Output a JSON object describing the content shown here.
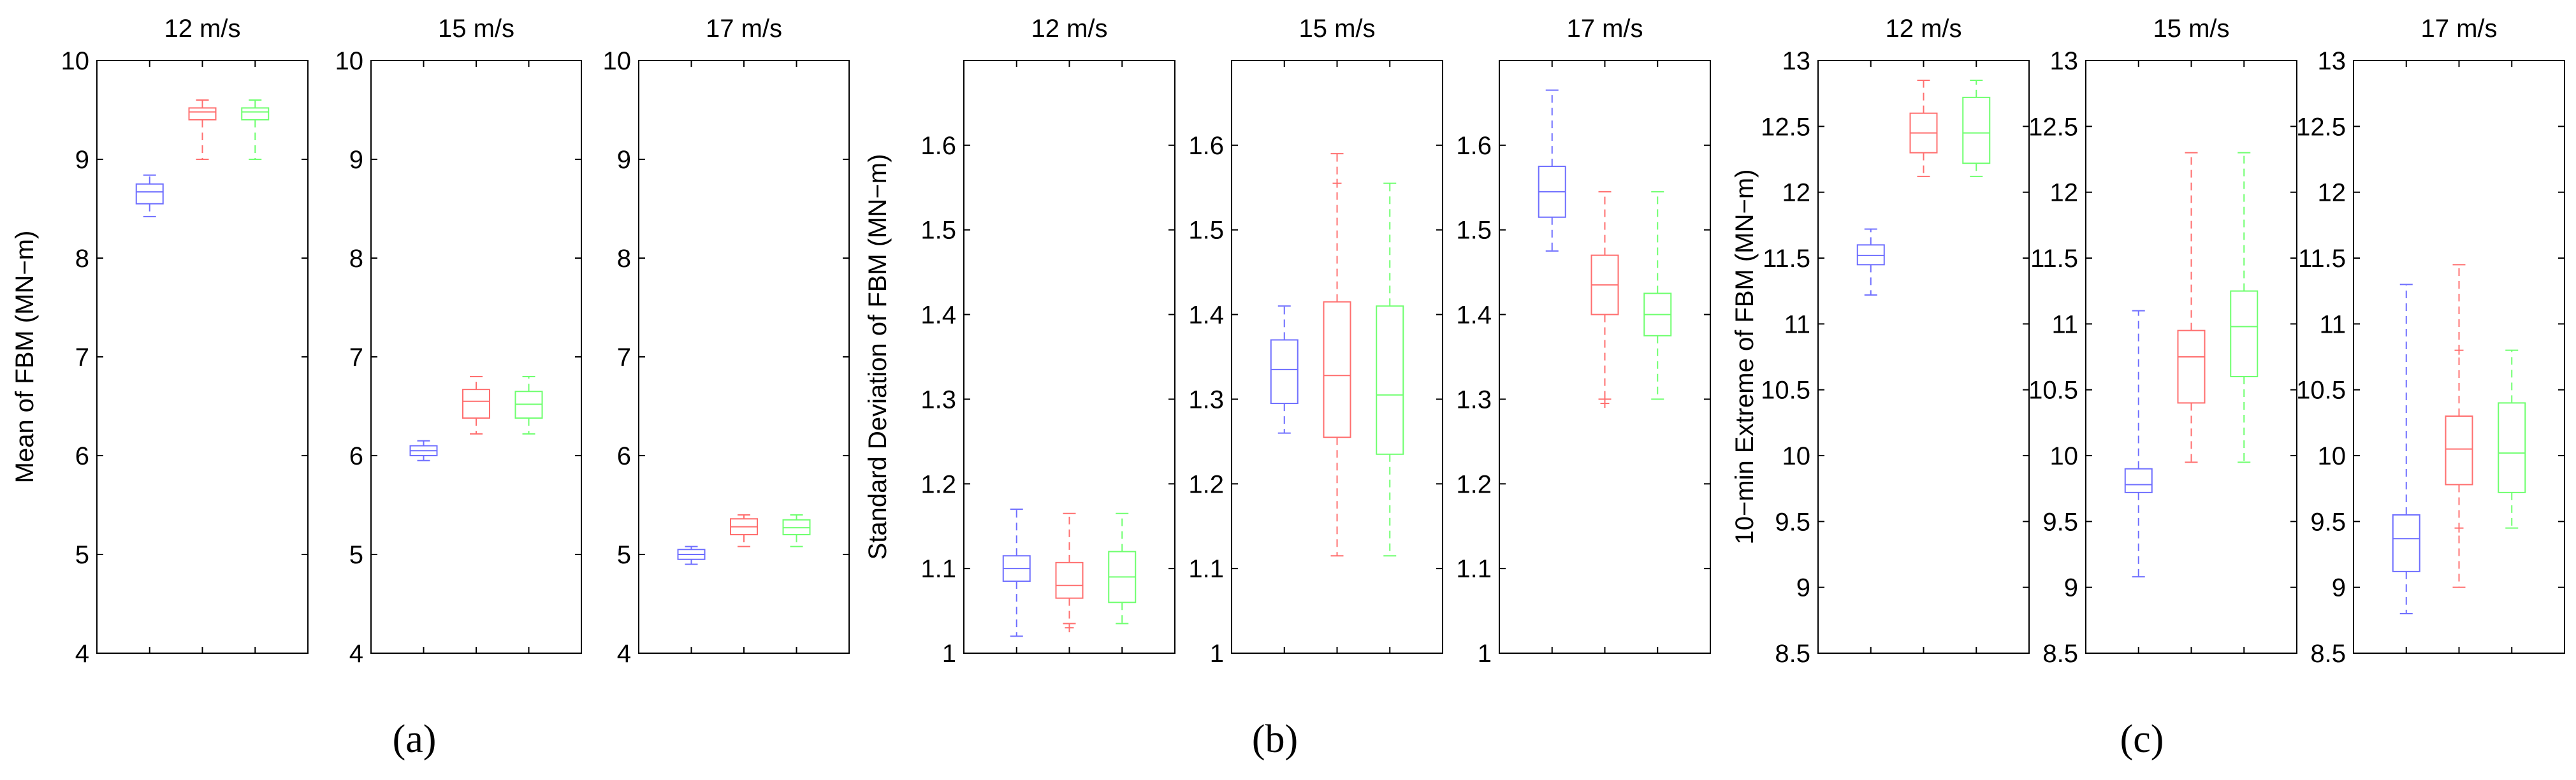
{
  "chart_data": [
    {
      "type": "box",
      "group": "a",
      "title": "12 m/s",
      "ylabel": "Mean of FBM (MN−m)",
      "ylim": [
        4,
        10
      ],
      "yticks": [
        4,
        5,
        6,
        7,
        8,
        9,
        10
      ],
      "ytick_labels": [
        "4",
        "5",
        "6",
        "7",
        "8",
        "9",
        "10"
      ],
      "colors": [
        "#6f6fff",
        "#ff6f6f",
        "#6fff6f"
      ],
      "series": [
        {
          "min": 8.42,
          "q1": 8.55,
          "median": 8.67,
          "q3": 8.75,
          "max": 8.84,
          "outliers": []
        },
        {
          "min": 9.0,
          "q1": 9.4,
          "median": 9.48,
          "q3": 9.52,
          "max": 9.6,
          "outliers": []
        },
        {
          "min": 9.0,
          "q1": 9.4,
          "median": 9.48,
          "q3": 9.52,
          "max": 9.6,
          "outliers": []
        }
      ]
    },
    {
      "type": "box",
      "group": "a",
      "title": "15 m/s",
      "ylabel": "",
      "ylim": [
        4,
        10
      ],
      "yticks": [
        4,
        5,
        6,
        7,
        8,
        9,
        10
      ],
      "ytick_labels": [
        "4",
        "5",
        "6",
        "7",
        "8",
        "9",
        "10"
      ],
      "colors": [
        "#6f6fff",
        "#ff6f6f",
        "#6fff6f"
      ],
      "series": [
        {
          "min": 5.95,
          "q1": 6.0,
          "median": 6.05,
          "q3": 6.1,
          "max": 6.15,
          "outliers": []
        },
        {
          "min": 6.22,
          "q1": 6.38,
          "median": 6.55,
          "q3": 6.67,
          "max": 6.8,
          "outliers": []
        },
        {
          "min": 6.22,
          "q1": 6.38,
          "median": 6.52,
          "q3": 6.65,
          "max": 6.8,
          "outliers": []
        }
      ]
    },
    {
      "type": "box",
      "group": "a",
      "title": "17 m/s",
      "ylabel": "",
      "ylim": [
        4,
        10
      ],
      "yticks": [
        4,
        5,
        6,
        7,
        8,
        9,
        10
      ],
      "ytick_labels": [
        "4",
        "5",
        "6",
        "7",
        "8",
        "9",
        "10"
      ],
      "colors": [
        "#6f6fff",
        "#ff6f6f",
        "#6fff6f"
      ],
      "series": [
        {
          "min": 4.9,
          "q1": 4.95,
          "median": 5.0,
          "q3": 5.05,
          "max": 5.08,
          "outliers": []
        },
        {
          "min": 5.08,
          "q1": 5.2,
          "median": 5.28,
          "q3": 5.36,
          "max": 5.4,
          "outliers": []
        },
        {
          "min": 5.08,
          "q1": 5.2,
          "median": 5.27,
          "q3": 5.35,
          "max": 5.4,
          "outliers": []
        }
      ]
    },
    {
      "type": "box",
      "group": "b",
      "title": "12 m/s",
      "ylabel": "Standard Deviation of FBM (MN−m)",
      "ylim": [
        1.0,
        1.7
      ],
      "yticks": [
        1.0,
        1.1,
        1.2,
        1.3,
        1.4,
        1.5,
        1.6
      ],
      "ytick_labels": [
        "1",
        "1.1",
        "1.2",
        "1.3",
        "1.4",
        "1.5",
        "1.6"
      ],
      "colors": [
        "#6f6fff",
        "#ff6f6f",
        "#6fff6f"
      ],
      "series": [
        {
          "min": 1.02,
          "q1": 1.085,
          "median": 1.1,
          "q3": 1.115,
          "max": 1.17,
          "outliers": []
        },
        {
          "min": 1.035,
          "q1": 1.065,
          "median": 1.08,
          "q3": 1.107,
          "max": 1.165,
          "outliers": [
            1.03
          ]
        },
        {
          "min": 1.035,
          "q1": 1.06,
          "median": 1.09,
          "q3": 1.12,
          "max": 1.165,
          "outliers": []
        }
      ]
    },
    {
      "type": "box",
      "group": "b",
      "title": "15 m/s",
      "ylabel": "",
      "ylim": [
        1.0,
        1.7
      ],
      "yticks": [
        1.0,
        1.1,
        1.2,
        1.3,
        1.4,
        1.5,
        1.6
      ],
      "ytick_labels": [
        "1",
        "1.1",
        "1.2",
        "1.3",
        "1.4",
        "1.5",
        "1.6"
      ],
      "colors": [
        "#6f6fff",
        "#ff6f6f",
        "#6fff6f"
      ],
      "series": [
        {
          "min": 1.26,
          "q1": 1.295,
          "median": 1.335,
          "q3": 1.37,
          "max": 1.41,
          "outliers": []
        },
        {
          "min": 1.115,
          "q1": 1.255,
          "median": 1.328,
          "q3": 1.415,
          "max": 1.59,
          "outliers": [
            1.555
          ]
        },
        {
          "min": 1.115,
          "q1": 1.235,
          "median": 1.305,
          "q3": 1.41,
          "max": 1.555,
          "outliers": []
        }
      ]
    },
    {
      "type": "box",
      "group": "b",
      "title": "17 m/s",
      "ylabel": "",
      "ylim": [
        1.0,
        1.7
      ],
      "yticks": [
        1.0,
        1.1,
        1.2,
        1.3,
        1.4,
        1.5,
        1.6
      ],
      "ytick_labels": [
        "1",
        "1.1",
        "1.2",
        "1.3",
        "1.4",
        "1.5",
        "1.6"
      ],
      "colors": [
        "#6f6fff",
        "#ff6f6f",
        "#6fff6f"
      ],
      "series": [
        {
          "min": 1.475,
          "q1": 1.515,
          "median": 1.545,
          "q3": 1.575,
          "max": 1.665,
          "outliers": []
        },
        {
          "min": 1.3,
          "q1": 1.4,
          "median": 1.435,
          "q3": 1.47,
          "max": 1.545,
          "outliers": [
            1.295
          ]
        },
        {
          "min": 1.3,
          "q1": 1.375,
          "median": 1.4,
          "q3": 1.425,
          "max": 1.545,
          "outliers": []
        }
      ]
    },
    {
      "type": "box",
      "group": "c",
      "title": "12 m/s",
      "ylabel": "10−min Extreme of FBM (MN−m)",
      "ylim": [
        8.5,
        13
      ],
      "yticks": [
        8.5,
        9,
        9.5,
        10,
        10.5,
        11,
        11.5,
        12,
        12.5,
        13
      ],
      "ytick_labels": [
        "8.5",
        "9",
        "9.5",
        "10",
        "10.5",
        "11",
        "11.5",
        "12",
        "12.5",
        "13"
      ],
      "colors": [
        "#6f6fff",
        "#ff6f6f",
        "#6fff6f"
      ],
      "series": [
        {
          "min": 11.22,
          "q1": 11.45,
          "median": 11.52,
          "q3": 11.6,
          "max": 11.72,
          "outliers": []
        },
        {
          "min": 12.12,
          "q1": 12.3,
          "median": 12.45,
          "q3": 12.6,
          "max": 12.85,
          "outliers": []
        },
        {
          "min": 12.12,
          "q1": 12.22,
          "median": 12.45,
          "q3": 12.72,
          "max": 12.85,
          "outliers": []
        }
      ]
    },
    {
      "type": "box",
      "group": "c",
      "title": "15 m/s",
      "ylabel": "",
      "ylim": [
        8.5,
        13
      ],
      "yticks": [
        8.5,
        9,
        9.5,
        10,
        10.5,
        11,
        11.5,
        12,
        12.5,
        13
      ],
      "ytick_labels": [
        "8.5",
        "9",
        "9.5",
        "10",
        "10.5",
        "11",
        "11.5",
        "12",
        "12.5",
        "13"
      ],
      "colors": [
        "#6f6fff",
        "#ff6f6f",
        "#6fff6f"
      ],
      "series": [
        {
          "min": 9.08,
          "q1": 9.72,
          "median": 9.78,
          "q3": 9.9,
          "max": 11.1,
          "outliers": []
        },
        {
          "min": 9.95,
          "q1": 10.4,
          "median": 10.75,
          "q3": 10.95,
          "max": 12.3,
          "outliers": []
        },
        {
          "min": 9.95,
          "q1": 10.6,
          "median": 10.98,
          "q3": 11.25,
          "max": 12.3,
          "outliers": []
        }
      ]
    },
    {
      "type": "box",
      "group": "c",
      "title": "17 m/s",
      "ylabel": "",
      "ylim": [
        8.5,
        13
      ],
      "yticks": [
        8.5,
        9,
        9.5,
        10,
        10.5,
        11,
        11.5,
        12,
        12.5,
        13
      ],
      "ytick_labels": [
        "8.5",
        "9",
        "9.5",
        "10",
        "10.5",
        "11",
        "11.5",
        "12",
        "12.5",
        "13"
      ],
      "colors": [
        "#6f6fff",
        "#ff6f6f",
        "#6fff6f"
      ],
      "series": [
        {
          "min": 8.8,
          "q1": 9.12,
          "median": 9.37,
          "q3": 9.55,
          "max": 11.3,
          "outliers": []
        },
        {
          "min": 9.0,
          "q1": 9.78,
          "median": 10.05,
          "q3": 10.3,
          "max": 11.45,
          "outliers": [
            9.45,
            10.8
          ]
        },
        {
          "min": 9.45,
          "q1": 9.72,
          "median": 10.02,
          "q3": 10.4,
          "max": 10.8,
          "outliers": []
        }
      ]
    }
  ],
  "captions": [
    "(a)",
    "(b)",
    "(c)"
  ]
}
